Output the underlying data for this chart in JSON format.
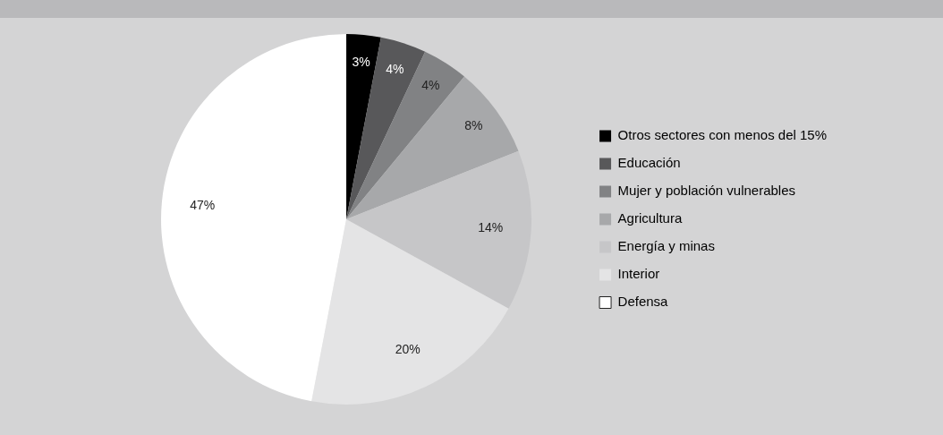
{
  "chart_data": {
    "type": "pie",
    "categories": [
      "Otros sectores con menos del 15%",
      "Educación",
      "Mujer y población vulnerables",
      "Agricultura",
      "Energía y minas",
      "Interior",
      "Defensa"
    ],
    "values": [
      3,
      4,
      4,
      8,
      14,
      20,
      47
    ],
    "value_labels": [
      "3%",
      "4%",
      "4%",
      "8%",
      "14%",
      "20%",
      "47%"
    ],
    "colors": [
      "#000000",
      "#58585a",
      "#818284",
      "#a7a8aa",
      "#c6c6c8",
      "#e4e4e5",
      "#ffffff"
    ],
    "legend": "right"
  }
}
